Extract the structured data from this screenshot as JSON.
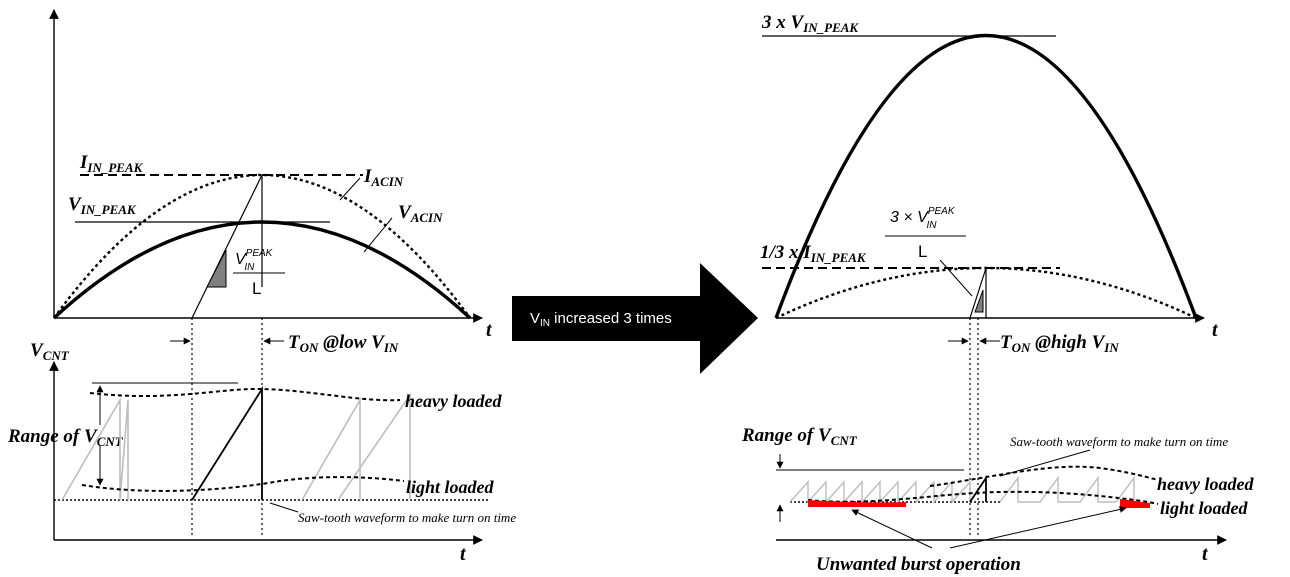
{
  "labels": {
    "t_axis": "t",
    "i_in_peak": "I",
    "i_in_peak_sub": "IN_PEAK",
    "v_in_peak": "V",
    "v_in_peak_sub": "IN_PEAK",
    "i_acin": "I",
    "i_acin_sub": "ACIN",
    "v_acin": "V",
    "v_acin_sub": "ACIN",
    "slope_num_v": "V",
    "slope_num_sup": "PEAK",
    "slope_num_sub": "IN",
    "slope_den": "L",
    "t_on_low": "T",
    "t_on_low_sub": "ON",
    "t_on_low_rest": " @low V",
    "t_on_low_rest_sub": "IN",
    "v_cnt": "V",
    "v_cnt_sub": "CNT",
    "range_left": "Range of V",
    "range_left_sub": "CNT",
    "heavy_loaded": "heavy loaded",
    "light_loaded": "light loaded",
    "sawtooth_left": "Saw-tooth waveform to make turn on time",
    "arrow_text_v": "V",
    "arrow_text_sub": "IN",
    "arrow_text_rest": " increased 3 times",
    "three_x_prefix": "3 x ",
    "three_x_v": "V",
    "three_x_sub": "IN_PEAK",
    "third_prefix": "1/3 x ",
    "third_i": "I",
    "third_sub": "IN_PEAK",
    "slope3_num": "3 × V",
    "slope3_sup": "PEAK",
    "slope3_sub": "IN",
    "slope3_den": "L",
    "t_on_high": "T",
    "t_on_high_sub": "ON",
    "t_on_high_rest": " @high V",
    "t_on_high_rest_sub": "IN",
    "range_right": "Range of V",
    "range_right_sub": "CNT",
    "sawtooth_right": "Saw-tooth waveform to make turn on time",
    "heavy_loaded_right": "heavy loaded",
    "light_loaded_right": "light loaded",
    "unwanted_burst": "Unwanted burst operation"
  },
  "colors": {
    "ink": "#000000",
    "sawtooth_gray": "#bdbdbd",
    "slope_fill": "#808080",
    "burst_red": "#ff0000",
    "arrow_fill": "#000000",
    "arrow_text": "#ffffff"
  }
}
